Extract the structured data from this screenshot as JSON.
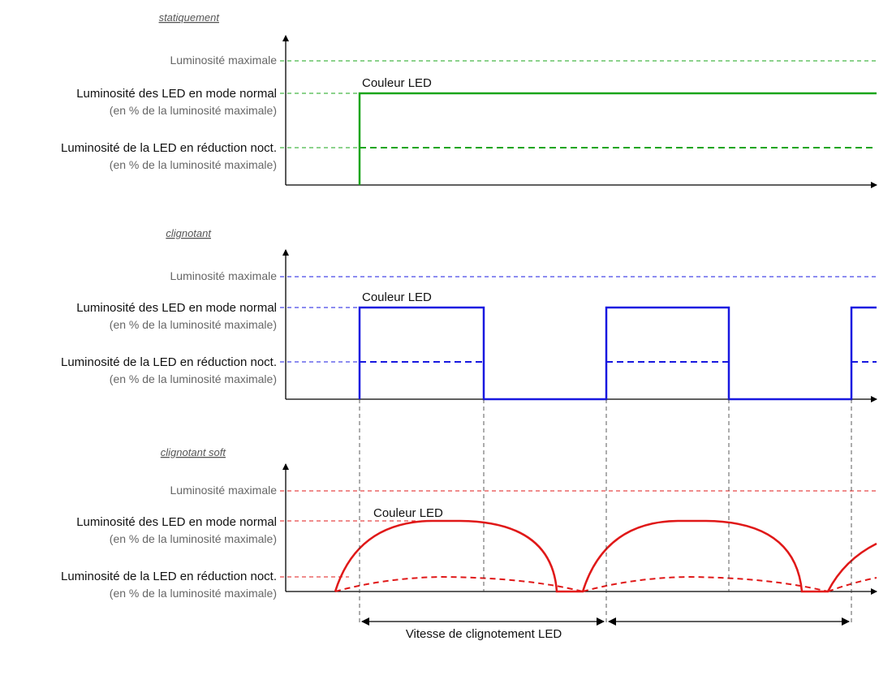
{
  "panels": [
    {
      "id": "static",
      "title": "statiquement",
      "color": "#1aa51a",
      "label_max": "Luminosité maximale",
      "label_normal": "Luminosité des LED en mode normal",
      "label_normal_sub": "(en % de la luminosité maximale)",
      "label_night": "Luminosité de la LED en réduction noct.",
      "label_night_sub": "(en % de la luminosité maximale)",
      "curve_label": "Couleur LED"
    },
    {
      "id": "blink",
      "title": "clignotant",
      "color": "#1818e0",
      "label_max": "Luminosité maximale",
      "label_normal": "Luminosité des LED en mode normal",
      "label_normal_sub": "(en % de la luminosité maximale)",
      "label_night": "Luminosité de la LED en réduction noct.",
      "label_night_sub": "(en % de la luminosité maximale)",
      "curve_label": "Couleur LED"
    },
    {
      "id": "soft",
      "title": "clignotant soft",
      "color": "#e01818",
      "label_max": "Luminosité maximale",
      "label_normal": "Luminosité des LED en mode normal",
      "label_normal_sub": "(en % de la luminosité maximale)",
      "label_night": "Luminosité de la LED en réduction noct.",
      "label_night_sub": "(en % de la luminosité maximale)",
      "curve_label": "Couleur LED"
    }
  ],
  "speed_label": "Vitesse de clignotement LED"
}
